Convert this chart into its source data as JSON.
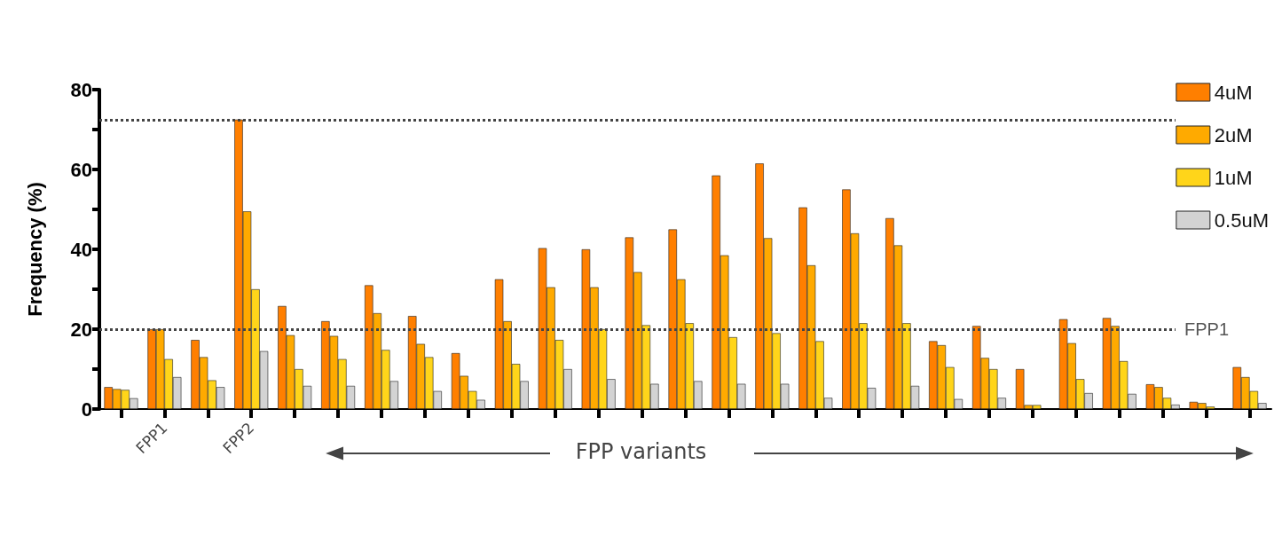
{
  "chart_data": {
    "type": "bar",
    "ylabel": "Frequency (%)",
    "categories": [
      null,
      "FPP1",
      null,
      "FPP2",
      null,
      null,
      null,
      null,
      null,
      null,
      null,
      null,
      null,
      null,
      null,
      null,
      null,
      null,
      null,
      null,
      null,
      null,
      null,
      null,
      null,
      null,
      null
    ],
    "series": [
      {
        "name": "4uM",
        "color": "#ff7f00",
        "values": [
          5.5,
          20,
          17.3,
          72.5,
          25.8,
          22,
          31,
          23.3,
          14,
          32.5,
          40.3,
          40,
          43,
          45,
          58.5,
          61.5,
          50.5,
          55,
          47.8,
          17,
          20.8,
          10,
          22.5,
          22.8,
          6.2,
          1.8,
          10.5
        ]
      },
      {
        "name": "2uM",
        "color": "#ffaa00",
        "values": [
          5,
          20,
          13,
          49.5,
          18.5,
          18.3,
          24,
          16.3,
          8.3,
          22,
          30.5,
          30.5,
          34.3,
          32.5,
          38.5,
          42.8,
          36,
          44,
          41,
          16,
          12.8,
          1,
          16.5,
          20.8,
          5.5,
          1.5,
          8
        ]
      },
      {
        "name": "1uM",
        "color": "#ffd51a",
        "values": [
          4.8,
          12.5,
          7.2,
          30,
          10,
          12.5,
          14.8,
          13,
          4.5,
          11.3,
          17.3,
          20,
          21,
          21.5,
          18,
          19,
          17,
          21.5,
          21.5,
          10.5,
          10,
          1,
          7.5,
          12,
          2.8,
          0.6,
          4.5
        ]
      },
      {
        "name": "0.5uM",
        "color": "#d3d3d3",
        "values": [
          2.7,
          8,
          5.5,
          14.5,
          5.8,
          5.8,
          7,
          4.5,
          2.3,
          7,
          10,
          7.5,
          6.3,
          7,
          6.3,
          6.3,
          2.8,
          5.3,
          5.8,
          2.5,
          2.8,
          null,
          4,
          3.8,
          1.1,
          null,
          1.5
        ]
      }
    ],
    "ylim": [
      0,
      80
    ],
    "yticks": [
      0,
      {
        "value": 10,
        "label": null
      },
      20,
      {
        "value": 30,
        "label": null
      },
      40,
      {
        "value": 50,
        "label": null
      },
      60,
      {
        "value": 70,
        "label": null
      },
      80
    ],
    "ref_lines": [
      {
        "axis": "y",
        "value": 72.5,
        "label": null,
        "color": "#444444",
        "line_style": "dotted"
      },
      {
        "axis": "y",
        "value": 20,
        "label": "FPP1",
        "color": "#444444",
        "line_style": "dotted"
      }
    ],
    "annotations": [
      "FPP variants"
    ],
    "grid": false,
    "legend": "top right"
  }
}
